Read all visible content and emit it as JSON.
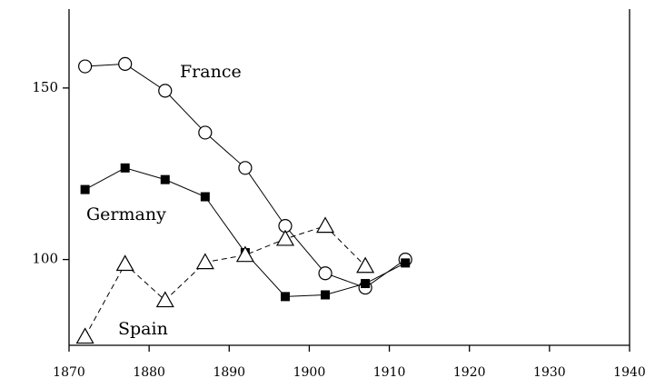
{
  "chart_data": {
    "type": "line",
    "x": [
      1872,
      1877,
      1882,
      1887,
      1892,
      1897,
      1902,
      1907,
      1912
    ],
    "series": [
      {
        "name": "France",
        "color": "#000000",
        "marker": "circle",
        "dash": false,
        "values": [
          156.3,
          157,
          149.2,
          137,
          126.7,
          109.8,
          96,
          91.8,
          100
        ]
      },
      {
        "name": "Germany",
        "color": "#000000",
        "marker": "square",
        "dash": false,
        "values": [
          120.4,
          126.7,
          123.3,
          118.3,
          102,
          89.2,
          89.7,
          93,
          99
        ]
      },
      {
        "name": "Spain",
        "color": "#000000",
        "marker": "triangle",
        "dash": true,
        "values": [
          77.5,
          98.7,
          88.1,
          99.2,
          101.3,
          106,
          109.8,
          98.1,
          null
        ]
      }
    ],
    "xlim": [
      1870,
      1940
    ],
    "xticks": [
      1870,
      1880,
      1890,
      1900,
      1910,
      1920,
      1930,
      1940
    ],
    "ylim": [
      75,
      173
    ],
    "yticks": [
      100,
      150
    ],
    "grid": false
  }
}
